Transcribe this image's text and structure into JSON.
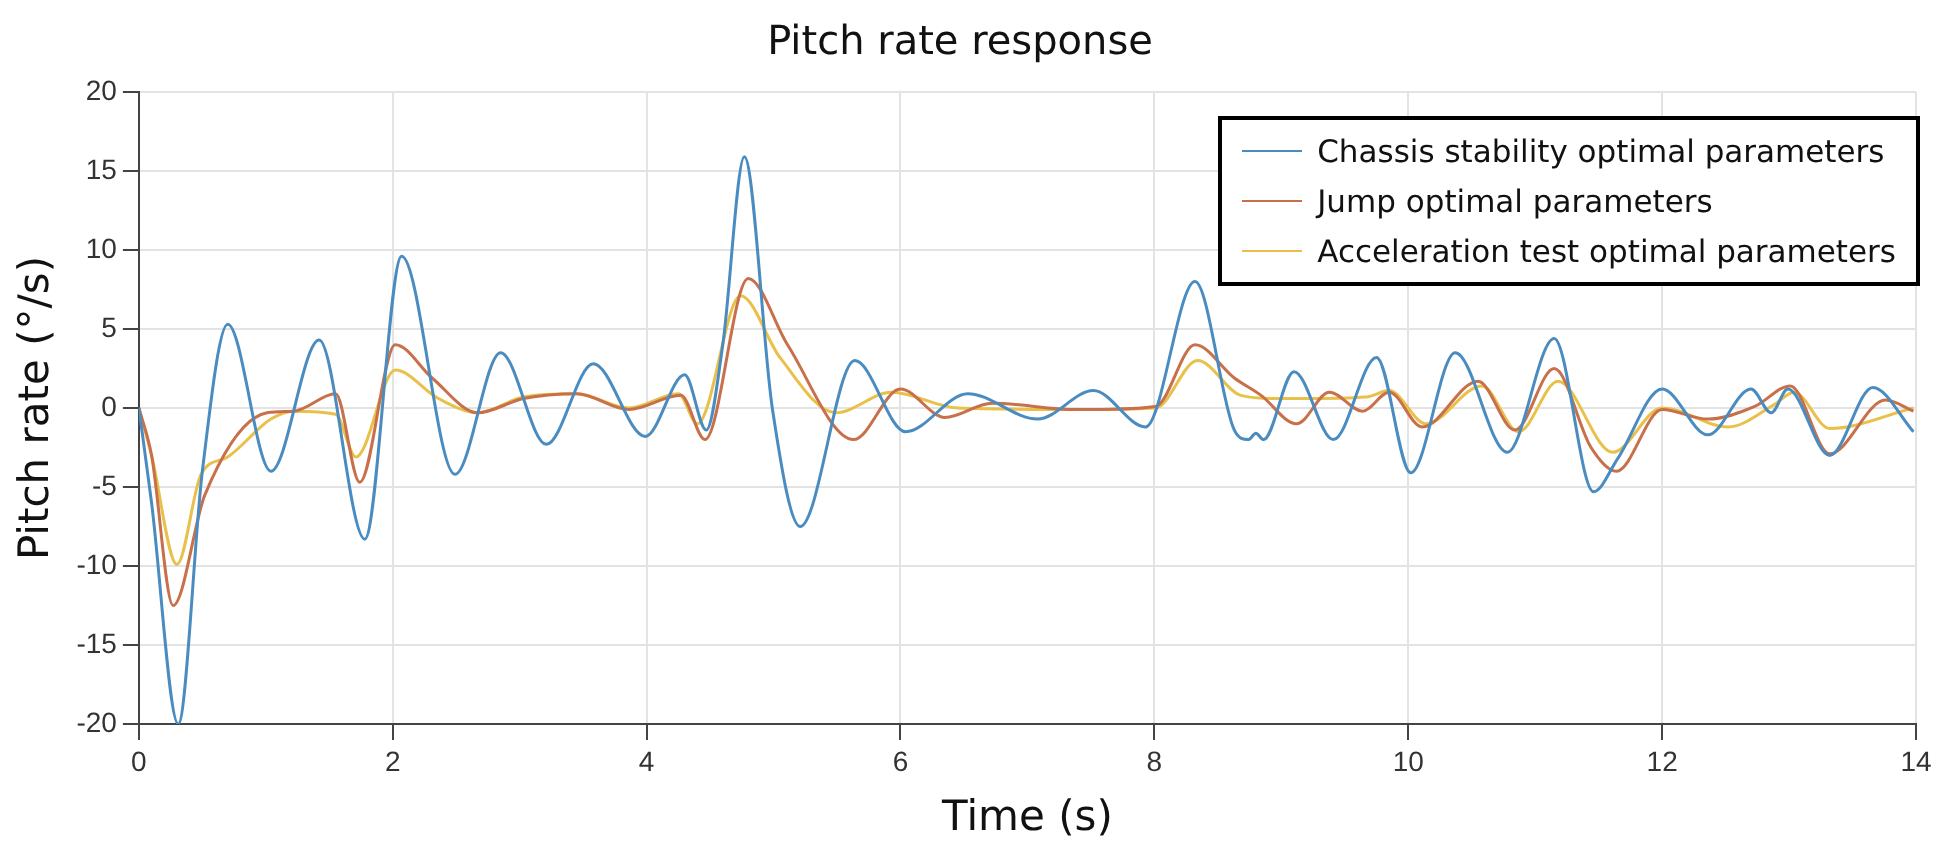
{
  "chart_data": {
    "type": "line",
    "title": "Pitch rate response",
    "xlabel": "Time (s)",
    "ylabel": "Pitch rate (°/s)",
    "xlim": [
      0,
      14
    ],
    "xticks": [
      0,
      2,
      4,
      6,
      8,
      10,
      12,
      14
    ],
    "ylim": [
      -20,
      20
    ],
    "yticks": [
      -20,
      -15,
      -10,
      -5,
      0,
      5,
      10,
      15,
      20
    ],
    "grid": true,
    "legend": "top right",
    "marker": "none",
    "line_style": "solid",
    "series": [
      {
        "name": "Chassis stability optimal parameters",
        "color": "#4a8cc0",
        "x": [
          0,
          0.1,
          0.31,
          0.5,
          0.7,
          1.04,
          1.42,
          1.78,
          2.07,
          2.49,
          2.85,
          3.21,
          3.58,
          3.99,
          4.3,
          4.47,
          4.6,
          4.77,
          4.99,
          5.21,
          5.64,
          6.04,
          6.53,
          7.08,
          7.52,
          7.93,
          8.32,
          8.63,
          8.74,
          8.8,
          8.86,
          9.1,
          9.41,
          9.75,
          10.02,
          10.37,
          10.78,
          11.15,
          11.46,
          11.65,
          12.0,
          12.36,
          12.7,
          12.86,
          12.99,
          13.32,
          13.66,
          13.98
        ],
        "values": [
          0,
          -6,
          -20,
          -4,
          5.3,
          -4,
          4.3,
          -8.3,
          9.6,
          -4.2,
          3.5,
          -2.3,
          2.8,
          -1.8,
          2.1,
          -1.4,
          4,
          15.9,
          0,
          -7.5,
          3,
          -1.5,
          0.9,
          -0.7,
          1.1,
          -1.2,
          8,
          -1.4,
          -2,
          -1.6,
          -2,
          2.3,
          -2,
          3.2,
          -4.1,
          3.5,
          -2.8,
          4.4,
          -5.3,
          -3.2,
          1.2,
          -1.7,
          1.2,
          -0.3,
          1.2,
          -3,
          1.3,
          -1.5
        ]
      },
      {
        "name": "Jump optimal parameters",
        "color": "#c8704a",
        "x": [
          0,
          0.1,
          0.27,
          0.52,
          1.01,
          1.22,
          1.55,
          1.74,
          2.02,
          2.31,
          2.67,
          3.03,
          3.45,
          3.86,
          4.27,
          4.46,
          4.8,
          5.11,
          5.63,
          6.0,
          6.35,
          6.72,
          7.39,
          8.01,
          8.32,
          8.63,
          8.84,
          9.12,
          9.38,
          9.64,
          9.85,
          10.11,
          10.55,
          10.84,
          11.15,
          11.44,
          11.64,
          12.0,
          12.36,
          12.73,
          13.01,
          13.32,
          13.76,
          13.98
        ],
        "values": [
          0,
          -3,
          -12.5,
          -5.5,
          -0.3,
          -0.2,
          0.9,
          -4.7,
          4,
          1.9,
          -0.3,
          0.6,
          0.9,
          -0.1,
          0.8,
          -2,
          8.2,
          4,
          -2,
          1.2,
          -0.6,
          0.3,
          -0.1,
          0.1,
          4,
          1.9,
          0.8,
          -1,
          1,
          -0.2,
          1,
          -1.2,
          1.7,
          -1.4,
          2.5,
          -2.5,
          -4,
          -0.1,
          -0.7,
          0.1,
          1.4,
          -2.9,
          0.5,
          -0.2
        ]
      },
      {
        "name": "Acceleration test optimal parameters",
        "color": "#e8c04a",
        "x": [
          0,
          0.1,
          0.3,
          0.49,
          0.7,
          1.04,
          1.22,
          1.55,
          1.71,
          2.02,
          2.36,
          2.67,
          3.03,
          3.45,
          3.86,
          4.25,
          4.4,
          4.74,
          5.05,
          5.49,
          5.93,
          6.45,
          7.39,
          8.01,
          8.34,
          8.68,
          8.94,
          9.15,
          9.67,
          9.85,
          10.14,
          10.58,
          10.87,
          11.18,
          11.61,
          12.0,
          12.52,
          12.88,
          13.04,
          13.32,
          13.98
        ],
        "values": [
          0,
          -3,
          -9.9,
          -4.2,
          -3.1,
          -0.7,
          -0.2,
          -0.4,
          -3.1,
          2.4,
          0.6,
          -0.3,
          0.7,
          0.9,
          0,
          0.9,
          -1,
          7.1,
          3.2,
          -0.3,
          1,
          0,
          -0.1,
          0,
          3,
          0.8,
          0.6,
          0.6,
          0.7,
          1.1,
          -1,
          1.4,
          -1.5,
          1.7,
          -2.8,
          0,
          -1.2,
          0.2,
          1,
          -1.3,
          0
        ]
      }
    ]
  }
}
